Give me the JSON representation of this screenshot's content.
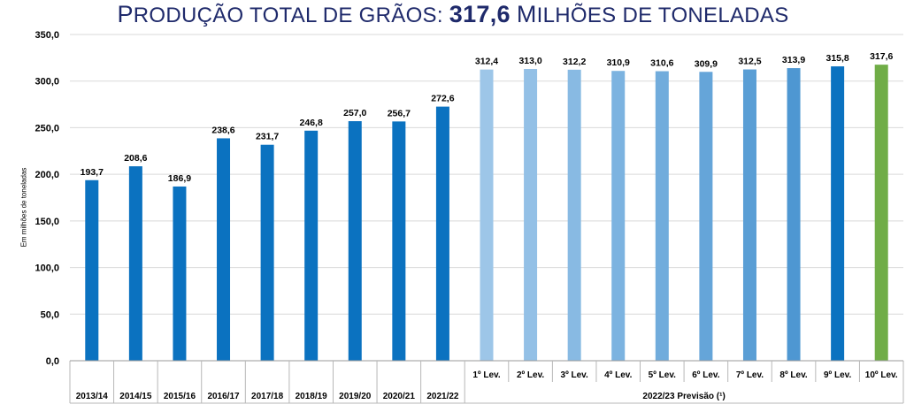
{
  "header": {
    "title_first": "P",
    "title_rest": "RODUÇÃO TOTAL DE GRÃOS:",
    "title_value": "317,6",
    "title_unit_first": "M",
    "title_unit_rest": "ILHÕES DE TONELADAS"
  },
  "chart_data": {
    "type": "bar",
    "ylabel": "Em milhões de toneladas",
    "ylim": [
      0,
      350
    ],
    "yticks": [
      "0,0",
      "50,0",
      "100,0",
      "150,0",
      "200,0",
      "250,0",
      "300,0",
      "350,0"
    ],
    "grid": true,
    "categories": [
      "2013/14",
      "2014/15",
      "2015/16",
      "2016/17",
      "2017/18",
      "2018/19",
      "2019/20",
      "2020/21",
      "2021/22",
      "1º Lev.",
      "2º Lev.",
      "3º Lev.",
      "4º Lev.",
      "5º Lev.",
      "6º Lev.",
      "7º Lev.",
      "8º Lev.",
      "9º Lev.",
      "10º Lev."
    ],
    "values": [
      193.7,
      208.6,
      186.9,
      238.6,
      231.7,
      246.8,
      257.0,
      256.7,
      272.6,
      312.4,
      313.0,
      312.2,
      310.9,
      310.6,
      309.9,
      312.5,
      313.9,
      315.8,
      317.6
    ],
    "value_labels": [
      "193,7",
      "208,6",
      "186,9",
      "238,6",
      "231,7",
      "246,8",
      "257,0",
      "256,7",
      "272,6",
      "312,4",
      "313,0",
      "312,2",
      "310,9",
      "310,6",
      "309,9",
      "312,5",
      "313,9",
      "315,8",
      "317,6"
    ],
    "colors": [
      "#0b72c0",
      "#0b72c0",
      "#0b72c0",
      "#0b72c0",
      "#0b72c0",
      "#0b72c0",
      "#0b72c0",
      "#0b72c0",
      "#0b72c0",
      "#9dc6e8",
      "#93c0e6",
      "#88bae3",
      "#7cb3e0",
      "#71acdc",
      "#65a5d9",
      "#5a9ed5",
      "#4e97d2",
      "#0b72c0",
      "#70ad47"
    ],
    "group_label": "2022/23 Previsão (¹)"
  }
}
